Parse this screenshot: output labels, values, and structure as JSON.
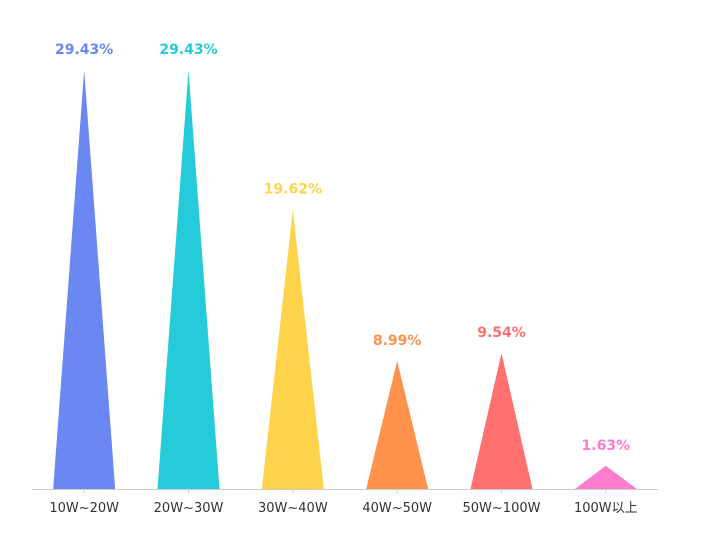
{
  "chart_data": {
    "type": "bar",
    "shape": "triangle",
    "categories": [
      "10W~20W",
      "20W~30W",
      "30W~40W",
      "40W~50W",
      "50W~100W",
      "100W以上"
    ],
    "values": [
      29.43,
      29.43,
      19.62,
      8.99,
      9.54,
      1.63
    ],
    "data_labels": [
      "29.43%",
      "29.43%",
      "19.62%",
      "8.99%",
      "9.54%",
      "1.63%"
    ],
    "colors": [
      "#6b87f2",
      "#26cbd9",
      "#ffd44d",
      "#ff924d",
      "#ff7070",
      "#ff7ccf"
    ],
    "ylim": [
      0,
      30
    ],
    "grid": false,
    "legend": "none",
    "axis_color": "#cccccc"
  }
}
